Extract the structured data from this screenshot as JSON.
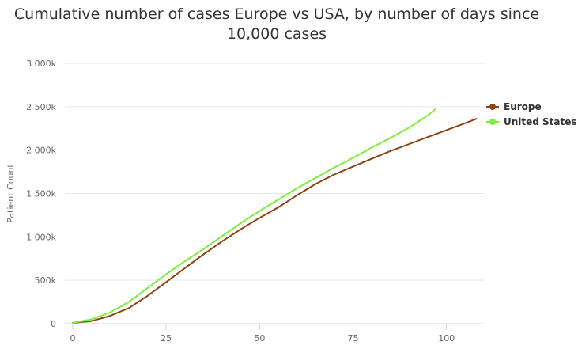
{
  "chart_data": {
    "type": "line",
    "title_lines": [
      "Cumulative number of cases Europe vs USA, by number of days since",
      "10,000 cases"
    ],
    "xlabel": "",
    "ylabel": "Patient Count",
    "xlim": [
      0,
      110
    ],
    "ylim": [
      0,
      3000000
    ],
    "x_ticks": [
      0,
      25,
      50,
      75,
      100
    ],
    "x_tick_labels": [
      "0",
      "25",
      "50",
      "75",
      "100"
    ],
    "y_ticks": [
      0,
      500000,
      1000000,
      1500000,
      2000000,
      2500000,
      3000000
    ],
    "y_tick_labels": [
      "0",
      "500k",
      "1 000k",
      "1 500k",
      "2 000k",
      "2 500k",
      "3 000k"
    ],
    "grid": "horizontal",
    "legend_position": "right",
    "series": [
      {
        "name": "Europe",
        "color": "#8B4513",
        "x": [
          0,
          5,
          10,
          15,
          20,
          25,
          30,
          35,
          40,
          45,
          50,
          55,
          60,
          65,
          70,
          75,
          80,
          85,
          90,
          95,
          100,
          105,
          108
        ],
        "y": [
          10000,
          30000,
          90000,
          180000,
          320000,
          480000,
          640000,
          800000,
          950000,
          1090000,
          1220000,
          1340000,
          1480000,
          1610000,
          1720000,
          1810000,
          1900000,
          1990000,
          2070000,
          2150000,
          2230000,
          2310000,
          2360000
        ]
      },
      {
        "name": "United States",
        "color": "#7CEE3C",
        "x": [
          0,
          5,
          10,
          15,
          20,
          25,
          30,
          35,
          40,
          45,
          50,
          55,
          60,
          65,
          70,
          75,
          80,
          85,
          90,
          95,
          97
        ],
        "y": [
          10000,
          50000,
          130000,
          250000,
          410000,
          570000,
          720000,
          860000,
          1010000,
          1160000,
          1300000,
          1430000,
          1560000,
          1680000,
          1800000,
          1910000,
          2030000,
          2140000,
          2260000,
          2400000,
          2470000
        ]
      }
    ]
  }
}
